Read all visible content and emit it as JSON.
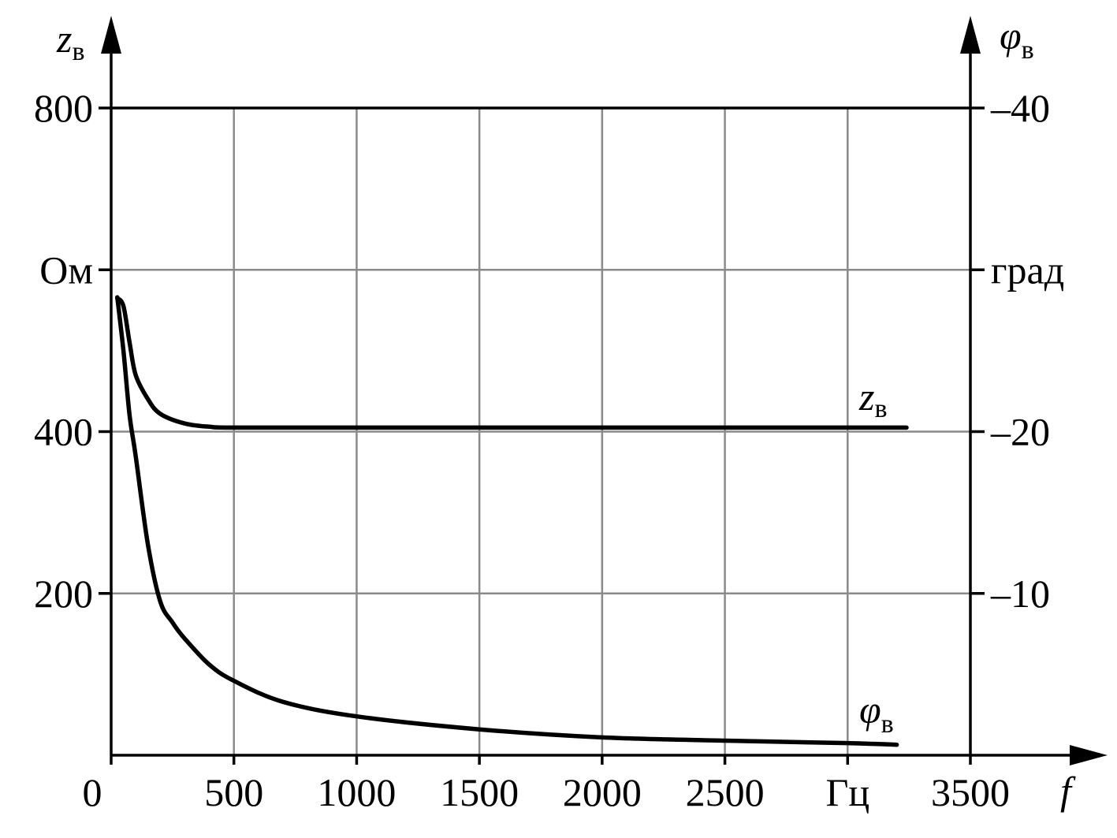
{
  "chart_data": {
    "type": "line",
    "x": {
      "label": "f",
      "unit": "Гц",
      "range": [
        0,
        3500
      ],
      "ticks": [
        0,
        500,
        1000,
        1500,
        2000,
        2500,
        3000,
        3500
      ],
      "tick_labels": [
        "0",
        "500",
        "1000",
        "1500",
        "2000",
        "2500",
        "Гц",
        "3500"
      ]
    },
    "y_left": {
      "label": "z",
      "label_sub": "в",
      "unit": "Ом",
      "range": [
        0,
        800
      ],
      "ticks": [
        200,
        400,
        600,
        800
      ],
      "tick_labels": [
        "200",
        "400",
        "Ом",
        "800"
      ]
    },
    "y_right": {
      "label": "φ",
      "label_sub": "в",
      "unit": "град",
      "range": [
        0,
        -40
      ],
      "ticks": [
        -10,
        -20,
        -30,
        -40
      ],
      "tick_labels": [
        "–10",
        "–20",
        "град",
        "–40"
      ]
    },
    "grid": true,
    "series": [
      {
        "name": "z",
        "name_sub": "в",
        "axis": "left",
        "points": [
          [
            25,
            565
          ],
          [
            50,
            555
          ],
          [
            75,
            510
          ],
          [
            100,
            470
          ],
          [
            150,
            440
          ],
          [
            200,
            422
          ],
          [
            300,
            410
          ],
          [
            400,
            406
          ],
          [
            500,
            405
          ],
          [
            1000,
            405
          ],
          [
            2000,
            405
          ],
          [
            3000,
            405
          ],
          [
            3240,
            405
          ]
        ]
      },
      {
        "name": "φ",
        "name_sub": "в",
        "axis": "right",
        "points": [
          [
            25,
            -28.3
          ],
          [
            50,
            -25
          ],
          [
            75,
            -21
          ],
          [
            100,
            -18.5
          ],
          [
            150,
            -13
          ],
          [
            200,
            -9.5
          ],
          [
            250,
            -8.2
          ],
          [
            300,
            -7.2
          ],
          [
            400,
            -5.6
          ],
          [
            500,
            -4.6
          ],
          [
            700,
            -3.3
          ],
          [
            1000,
            -2.4
          ],
          [
            1500,
            -1.6
          ],
          [
            2000,
            -1.1
          ],
          [
            2500,
            -0.9
          ],
          [
            3000,
            -0.75
          ],
          [
            3200,
            -0.65
          ]
        ]
      }
    ]
  }
}
